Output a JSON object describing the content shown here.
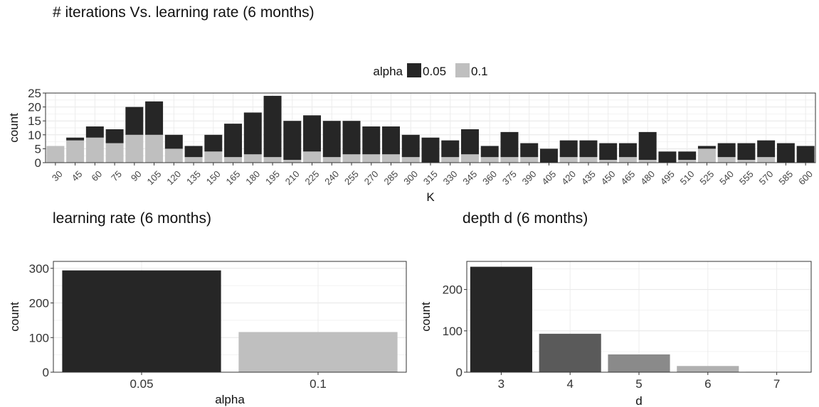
{
  "title": "# iterations Vs. learning rate (6 months)",
  "chart_data": [
    {
      "type": "bar",
      "stacked": true,
      "title": "# iterations Vs. learning rate (6 months)",
      "xlabel": "K",
      "ylabel": "count",
      "ylim": [
        0,
        25
      ],
      "yticks": [
        0,
        5,
        10,
        15,
        20,
        25
      ],
      "legend": {
        "title": "alpha",
        "position": "top",
        "entries": [
          "0.05",
          "0.1"
        ]
      },
      "colors": {
        "0.05": "#262626",
        "0.1": "#bfbfbf"
      },
      "categories": [
        "30",
        "45",
        "60",
        "75",
        "90",
        "105",
        "120",
        "135",
        "150",
        "165",
        "180",
        "195",
        "210",
        "225",
        "240",
        "255",
        "270",
        "285",
        "300",
        "315",
        "330",
        "345",
        "360",
        "375",
        "390",
        "405",
        "420",
        "435",
        "450",
        "465",
        "480",
        "495",
        "510",
        "525",
        "540",
        "555",
        "570",
        "585",
        "600"
      ],
      "series": [
        {
          "name": "0.1",
          "values": [
            6,
            8,
            9,
            7,
            10,
            10,
            5,
            2,
            4,
            2,
            3,
            2,
            1,
            4,
            2,
            3,
            3,
            3,
            2,
            0,
            2,
            3,
            2,
            2,
            2,
            0,
            2,
            2,
            1,
            2,
            1,
            0,
            1,
            5,
            2,
            1,
            2,
            0,
            0
          ]
        },
        {
          "name": "0.05",
          "values": [
            0,
            1,
            4,
            5,
            10,
            12,
            5,
            4,
            6,
            12,
            15,
            22,
            14,
            13,
            13,
            12,
            10,
            10,
            8,
            9,
            6,
            9,
            4,
            9,
            5,
            5,
            6,
            6,
            6,
            5,
            10,
            4,
            3,
            1,
            5,
            6,
            6,
            7,
            6
          ]
        }
      ]
    },
    {
      "type": "bar",
      "title": "learning rate (6 months)",
      "xlabel": "alpha",
      "ylabel": "count",
      "ylim": [
        0,
        300
      ],
      "yticks": [
        0,
        100,
        200,
        300
      ],
      "categories": [
        "0.05",
        "0.1"
      ],
      "values": [
        294,
        116
      ],
      "colors": [
        "#262626",
        "#bfbfbf"
      ]
    },
    {
      "type": "bar",
      "title": "depth d (6 months)",
      "xlabel": "d",
      "ylabel": "count",
      "ylim": [
        0,
        250
      ],
      "yticks": [
        0,
        100,
        200
      ],
      "categories": [
        "3",
        "4",
        "5",
        "6",
        "7"
      ],
      "values": [
        255,
        93,
        43,
        15,
        1
      ],
      "colors": [
        "#262626",
        "#5a5a5a",
        "#8a8a8a",
        "#b0b0b0",
        "#d0d0d0"
      ]
    }
  ]
}
